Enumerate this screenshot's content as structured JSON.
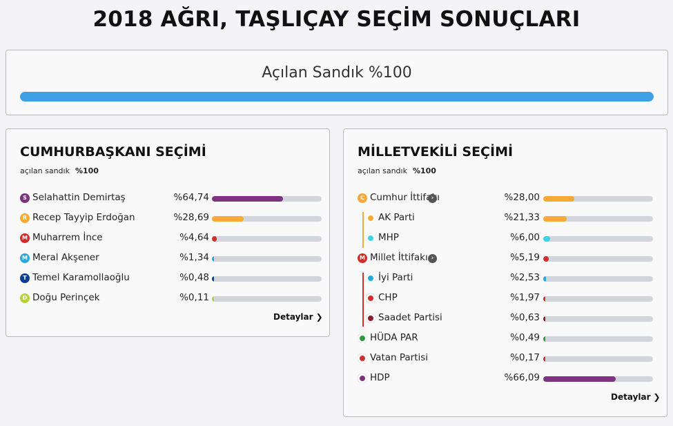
{
  "page": {
    "title": "2018 AĞRI, TAŞLIÇAY SEÇİM SONUÇLARI"
  },
  "overall": {
    "label": "Açılan Sandık %100",
    "progress": 1.0,
    "color": "#3ea1e6"
  },
  "presidential": {
    "title": "CUMHURBAŞKANI SEÇİMİ",
    "opened_label": "açılan sandık",
    "opened_value": "%100",
    "details_label": "Detaylar",
    "candidates": [
      {
        "badge": "S",
        "name": "Selahattin Demirtaş",
        "percent_text": "%64,74",
        "value": 64.74,
        "color": "#7d3380"
      },
      {
        "badge": "R",
        "name": "Recep Tayyip Erdoğan",
        "percent_text": "%28,69",
        "value": 28.69,
        "color": "#f7a935"
      },
      {
        "badge": "M",
        "name": "Muharrem İnce",
        "percent_text": "%4,64",
        "value": 4.64,
        "color": "#d22d2d"
      },
      {
        "badge": "M",
        "name": "Meral Akşener",
        "percent_text": "%1,34",
        "value": 1.34,
        "color": "#26a9db"
      },
      {
        "badge": "T",
        "name": "Temel Karamollaoğlu",
        "percent_text": "%0,48",
        "value": 0.48,
        "color": "#0b3d91"
      },
      {
        "badge": "D",
        "name": "Doğu Perinçek",
        "percent_text": "%0,11",
        "value": 0.11,
        "color": "#b5d334"
      }
    ]
  },
  "parliament": {
    "title": "MİLLETVEKİLİ SEÇİMİ",
    "opened_label": "açılan sandık",
    "opened_value": "%100",
    "details_label": "Detaylar",
    "parties": [
      {
        "badge": "C",
        "icon": "cumhur-ittifaki-logo",
        "name": "Cumhur İttifakı",
        "percent_text": "%28,00",
        "value": 28.0,
        "color": "#f7a935",
        "alliance": true
      },
      {
        "icon": "ak-parti-logo",
        "name": "AK Parti",
        "percent_text": "%21,33",
        "value": 21.33,
        "color": "#f7a935",
        "member": true
      },
      {
        "icon": "mhp-logo",
        "name": "MHP",
        "percent_text": "%6,00",
        "value": 6.0,
        "color": "#3fd2e6",
        "member": true
      },
      {
        "badge": "M",
        "icon": "millet-ittifaki-logo",
        "name": "Millet İttifakı",
        "percent_text": "%5,19",
        "value": 5.19,
        "color": "#d22d2d",
        "alliance": true
      },
      {
        "icon": "iyi-parti-logo",
        "name": "İyi Parti",
        "percent_text": "%2,53",
        "value": 2.53,
        "color": "#26a9db",
        "member": true
      },
      {
        "icon": "chp-logo",
        "name": "CHP",
        "percent_text": "%1,97",
        "value": 1.97,
        "color": "#d22d2d",
        "member": true
      },
      {
        "icon": "saadet-partisi-logo",
        "name": "Saadet Partisi",
        "percent_text": "%0,63",
        "value": 0.63,
        "color": "#8e1b2b",
        "member": true
      },
      {
        "icon": "huda-par-logo",
        "name": "HÜDA PAR",
        "percent_text": "%0,49",
        "value": 0.49,
        "color": "#2e9b3f"
      },
      {
        "icon": "vatan-partisi-logo",
        "name": "Vatan Partisi",
        "percent_text": "%0,17",
        "value": 0.17,
        "color": "#d22d2d"
      },
      {
        "icon": "hdp-logo",
        "name": "HDP",
        "percent_text": "%66,09",
        "value": 66.09,
        "color": "#7d3380"
      }
    ],
    "alliance_line_colors": {
      "cumhur": "#f7a935",
      "millet": "#d22d2d"
    }
  }
}
